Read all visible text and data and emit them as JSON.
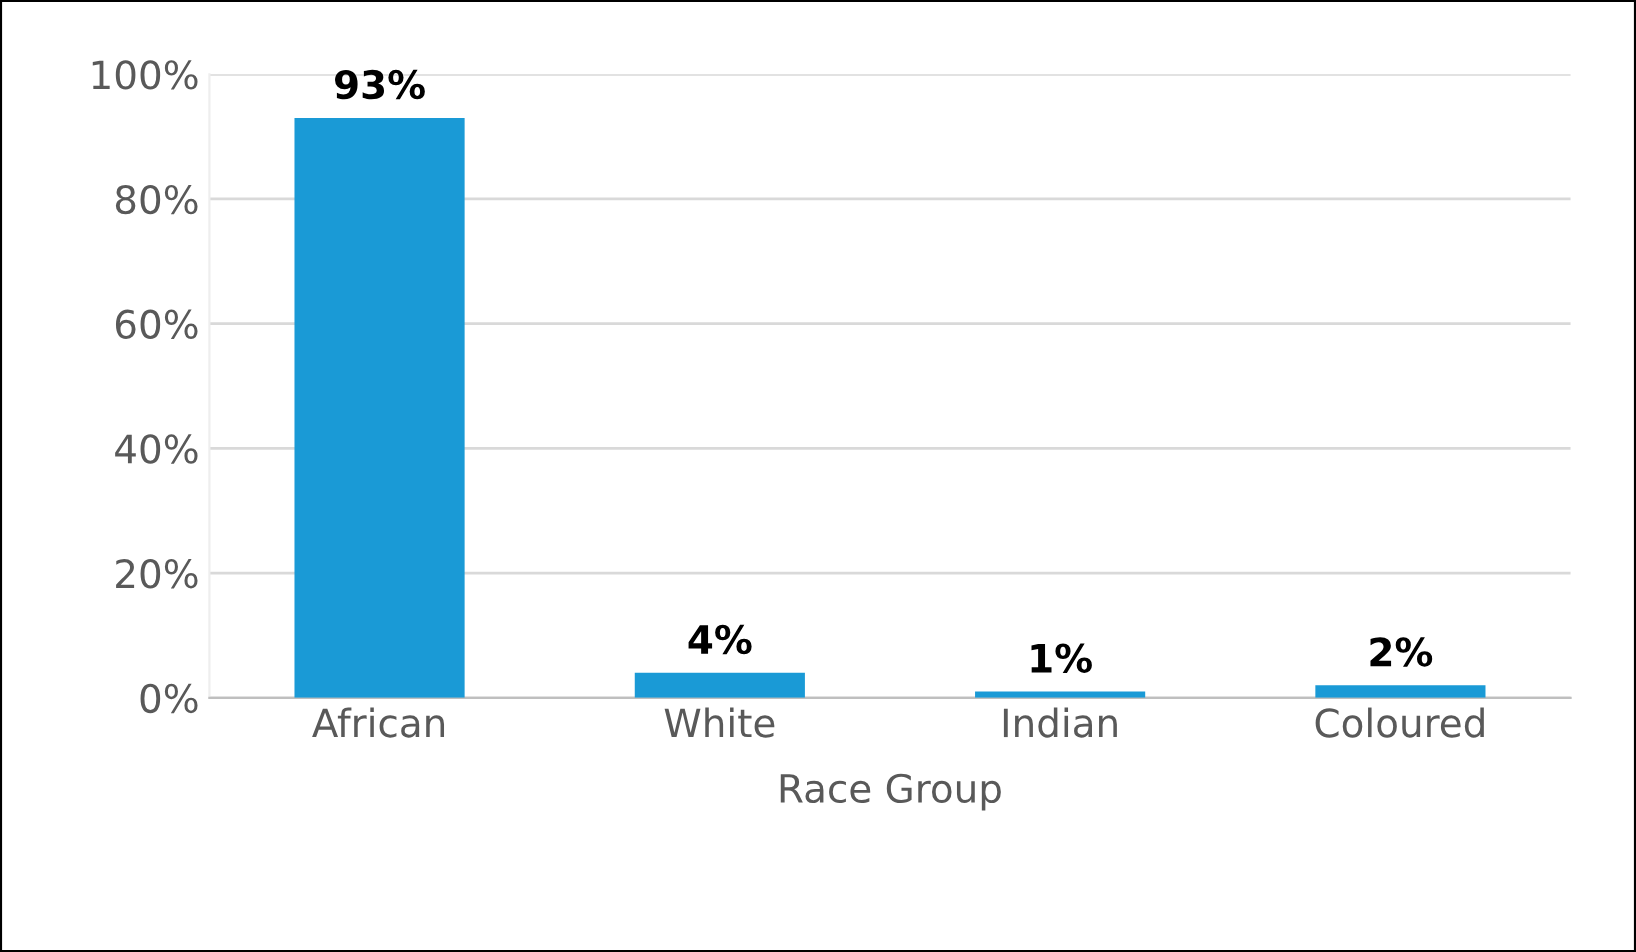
{
  "chart_data": {
    "type": "bar",
    "xlabel": "Race Group",
    "categories": [
      "African",
      "White",
      "Indian",
      "Coloured"
    ],
    "values": [
      93,
      4,
      1,
      2
    ],
    "value_labels": [
      "93%",
      "4%",
      "1%",
      "2%"
    ],
    "color": "#1a9ad6",
    "ylim": [
      0,
      100
    ],
    "yticks": [
      {
        "value": 0,
        "label": "0%"
      },
      {
        "value": 20,
        "label": "20%"
      },
      {
        "value": 40,
        "label": "40%"
      },
      {
        "value": 60,
        "label": "60%"
      },
      {
        "value": 80,
        "label": "80%"
      },
      {
        "value": 100,
        "label": "100%"
      }
    ],
    "grid": "y",
    "legend": false
  }
}
